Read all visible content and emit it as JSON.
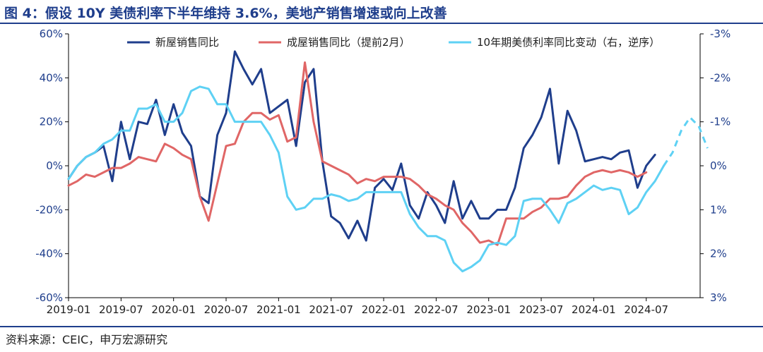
{
  "title": "图 4：假设 10Y 美债利率下半年维持 3.6%，美地产销售增速或向上改善",
  "source": "资料来源：CEIC，申万宏源研究",
  "colors": {
    "title": "#1f3e8c",
    "new_home": "#1f3e8c",
    "existing_home": "#e06666",
    "treasury": "#5ed1f4",
    "axis_text": "#1f3e8c"
  },
  "chart_data": {
    "type": "line",
    "x_tick_labels": [
      "2019-01",
      "2019-07",
      "2020-01",
      "2020-07",
      "2021-01",
      "2021-07",
      "2022-01",
      "2022-07",
      "2023-01",
      "2023-07",
      "2024-01",
      "2024-07"
    ],
    "y_left": {
      "min": -60,
      "max": 60,
      "step": 20,
      "unit": "%",
      "tick_labels": [
        "60%",
        "40%",
        "20%",
        "0%",
        "-20%",
        "-40%",
        "-60%"
      ]
    },
    "y_right": {
      "min": -3,
      "max": 3,
      "step": 1,
      "inverted": true,
      "tick_labels": [
        "-3%",
        "-2%",
        "-1%",
        "0%",
        "1%",
        "2%",
        "3%"
      ]
    },
    "legend": {
      "placement": "top"
    },
    "series": [
      {
        "name": "新屋销售同比",
        "axis": "left",
        "start": "2019-01",
        "values": [
          -6,
          0,
          4,
          6,
          9,
          -7,
          20,
          3,
          20,
          19,
          30,
          14,
          28,
          15,
          9,
          -14,
          -17,
          14,
          24,
          52,
          44,
          37,
          44,
          24,
          27,
          30,
          9,
          38,
          44,
          2,
          -23,
          -26,
          -33,
          -25,
          -34,
          -10,
          -6,
          -11,
          1,
          -18,
          -24,
          -12,
          -18,
          -26,
          -7,
          -24,
          -16,
          -24,
          -24,
          -20,
          -20,
          -10,
          8,
          14,
          22,
          35,
          1,
          25,
          16,
          2,
          3,
          4,
          3,
          6,
          7,
          -10,
          0,
          5
        ],
        "dashed_from": null
      },
      {
        "name": "成屋销售同比（提前2月）",
        "axis": "left",
        "start": "2019-01",
        "values": [
          -9,
          -7,
          -4,
          -5,
          -3,
          -1,
          -1,
          1,
          4,
          3,
          2,
          10,
          8,
          5,
          3,
          -14,
          -25,
          -8,
          9,
          10,
          20,
          24,
          24,
          21,
          23,
          11,
          13,
          47,
          20,
          2,
          0,
          -2,
          -4,
          -8,
          -6,
          -7,
          -5,
          -5,
          -5,
          -6,
          -9,
          -13,
          -15,
          -18,
          -20,
          -26,
          -30,
          -35,
          -34,
          -36,
          -24,
          -24,
          -24,
          -21,
          -19,
          -15,
          -15,
          -14,
          -9,
          -5,
          -3,
          -2,
          -3,
          -2,
          -3,
          -5,
          -3
        ],
        "dashed_from": null
      },
      {
        "name": "10年期美债利率同比变动（右，逆序）",
        "axis": "right",
        "start": "2019-01",
        "values": [
          0.3,
          0.0,
          -0.2,
          -0.3,
          -0.5,
          -0.6,
          -0.8,
          -0.8,
          -1.3,
          -1.3,
          -1.4,
          -1.0,
          -1.0,
          -1.2,
          -1.7,
          -1.8,
          -1.75,
          -1.4,
          -1.4,
          -1.0,
          -1.0,
          -1.0,
          -1.0,
          -0.7,
          -0.3,
          0.7,
          1.0,
          0.95,
          0.75,
          0.75,
          0.65,
          0.7,
          0.8,
          0.75,
          0.6,
          0.6,
          0.6,
          0.6,
          0.6,
          1.1,
          1.4,
          1.6,
          1.6,
          1.7,
          2.2,
          2.4,
          2.3,
          2.15,
          1.8,
          1.75,
          1.8,
          1.6,
          0.8,
          0.75,
          0.75,
          1.0,
          1.3,
          0.85,
          0.75,
          0.6,
          0.45,
          0.55,
          0.5,
          0.55,
          1.1,
          0.95,
          0.6,
          0.35,
          0.0,
          -0.3,
          -0.8,
          -1.1,
          -0.9,
          -0.4
        ],
        "dashed_from": 68
      }
    ]
  }
}
